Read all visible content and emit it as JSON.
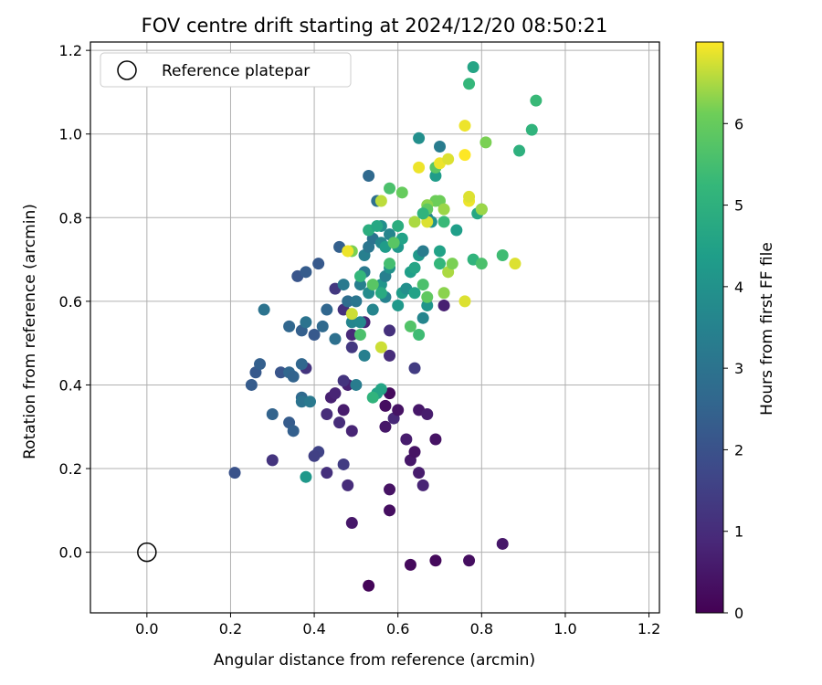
{
  "chart_data": {
    "type": "scatter",
    "title": "FOV centre drift starting at 2024/12/20 08:50:21",
    "xlabel": "Angular distance from reference (arcmin)",
    "ylabel": "Rotation from reference (arcmin)",
    "xlim": [
      -0.135,
      1.225
    ],
    "ylim": [
      -0.145,
      1.22
    ],
    "xticks": [
      "0.0",
      "0.2",
      "0.4",
      "0.6",
      "0.8",
      "1.0",
      "1.2"
    ],
    "yticks": [
      "0.0",
      "0.2",
      "0.4",
      "0.6",
      "0.8",
      "1.0",
      "1.2"
    ],
    "grid": true,
    "legend": {
      "placement": "top-left",
      "entries": [
        "Reference platepar"
      ]
    },
    "reference_point": {
      "x": 0.0,
      "y": 0.0,
      "label": "Reference platepar"
    },
    "colorbar": {
      "label": "Hours from first FF file",
      "min": 0,
      "max": 7,
      "ticks": [
        "0",
        "1",
        "2",
        "3",
        "4",
        "5",
        "6"
      ],
      "colormap": "viridis"
    },
    "series": [
      {
        "points": [
          [
            0.53,
            -0.08,
            0.1
          ],
          [
            0.63,
            -0.03,
            0.2
          ],
          [
            0.69,
            -0.02,
            0.2
          ],
          [
            0.77,
            -0.02,
            0.3
          ],
          [
            0.85,
            0.02,
            0.5
          ],
          [
            0.49,
            0.07,
            0.5
          ],
          [
            0.58,
            0.1,
            0.3
          ],
          [
            0.58,
            0.15,
            0.4
          ],
          [
            0.66,
            0.16,
            0.8
          ],
          [
            0.65,
            0.19,
            0.6
          ],
          [
            0.63,
            0.22,
            0.5
          ],
          [
            0.62,
            0.27,
            0.6
          ],
          [
            0.69,
            0.27,
            0.4
          ],
          [
            0.64,
            0.24,
            0.4
          ],
          [
            0.48,
            0.16,
            1.0
          ],
          [
            0.43,
            0.19,
            1.1
          ],
          [
            0.47,
            0.21,
            1.4
          ],
          [
            0.41,
            0.24,
            1.6
          ],
          [
            0.4,
            0.23,
            1.5
          ],
          [
            0.3,
            0.22,
            1.2
          ],
          [
            0.49,
            0.29,
            0.8
          ],
          [
            0.46,
            0.31,
            1.0
          ],
          [
            0.43,
            0.33,
            1.0
          ],
          [
            0.47,
            0.34,
            0.6
          ],
          [
            0.44,
            0.37,
            0.7
          ],
          [
            0.45,
            0.38,
            0.8
          ],
          [
            0.48,
            0.4,
            0.7
          ],
          [
            0.47,
            0.41,
            1.2
          ],
          [
            0.57,
            0.3,
            0.5
          ],
          [
            0.59,
            0.32,
            0.9
          ],
          [
            0.6,
            0.34,
            0.4
          ],
          [
            0.57,
            0.35,
            0.3
          ],
          [
            0.58,
            0.38,
            0.2
          ],
          [
            0.65,
            0.34,
            0.5
          ],
          [
            0.67,
            0.33,
            0.6
          ],
          [
            0.58,
            0.47,
            1.0
          ],
          [
            0.58,
            0.53,
            1.1
          ],
          [
            0.64,
            0.44,
            1.4
          ],
          [
            0.49,
            0.49,
            1.3
          ],
          [
            0.49,
            0.52,
            0.9
          ],
          [
            0.52,
            0.55,
            0.8
          ],
          [
            0.45,
            0.63,
            1.3
          ],
          [
            0.47,
            0.58,
            1.1
          ],
          [
            0.71,
            0.59,
            0.7
          ],
          [
            0.38,
            0.44,
            1.2
          ],
          [
            0.21,
            0.19,
            2.0
          ],
          [
            0.25,
            0.4,
            2.3
          ],
          [
            0.26,
            0.43,
            2.2
          ],
          [
            0.27,
            0.45,
            2.4
          ],
          [
            0.3,
            0.33,
            2.5
          ],
          [
            0.34,
            0.31,
            2.3
          ],
          [
            0.35,
            0.29,
            2.4
          ],
          [
            0.32,
            0.43,
            2.1
          ],
          [
            0.34,
            0.43,
            2.6
          ],
          [
            0.35,
            0.42,
            2.5
          ],
          [
            0.37,
            0.37,
            2.7
          ],
          [
            0.37,
            0.36,
            3.0
          ],
          [
            0.37,
            0.45,
            2.6
          ],
          [
            0.39,
            0.36,
            3.2
          ],
          [
            0.38,
            0.18,
            4.2
          ],
          [
            0.28,
            0.58,
            3.0
          ],
          [
            0.34,
            0.54,
            2.6
          ],
          [
            0.37,
            0.53,
            2.4
          ],
          [
            0.38,
            0.55,
            3.0
          ],
          [
            0.4,
            0.52,
            2.2
          ],
          [
            0.42,
            0.54,
            2.7
          ],
          [
            0.41,
            0.69,
            2.2
          ],
          [
            0.36,
            0.66,
            2.1
          ],
          [
            0.38,
            0.67,
            2.3
          ],
          [
            0.43,
            0.58,
            2.6
          ],
          [
            0.45,
            0.51,
            2.9
          ],
          [
            0.46,
            0.73,
            2.4
          ],
          [
            0.48,
            0.6,
            2.8
          ],
          [
            0.47,
            0.64,
            3.2
          ],
          [
            0.5,
            0.6,
            3.1
          ],
          [
            0.51,
            0.64,
            3.4
          ],
          [
            0.49,
            0.55,
            3.6
          ],
          [
            0.5,
            0.4,
            3.3
          ],
          [
            0.52,
            0.47,
            3.4
          ],
          [
            0.51,
            0.55,
            3.7
          ],
          [
            0.52,
            0.67,
            3.2
          ],
          [
            0.52,
            0.71,
            3.4
          ],
          [
            0.53,
            0.73,
            3.1
          ],
          [
            0.54,
            0.75,
            3.0
          ],
          [
            0.53,
            0.9,
            2.7
          ],
          [
            0.55,
            0.84,
            2.9
          ],
          [
            0.54,
            0.58,
            3.6
          ],
          [
            0.53,
            0.62,
            3.8
          ],
          [
            0.56,
            0.64,
            4.1
          ],
          [
            0.57,
            0.66,
            3.4
          ],
          [
            0.56,
            0.74,
            3.7
          ],
          [
            0.57,
            0.73,
            4.3
          ],
          [
            0.57,
            0.61,
            3.5
          ],
          [
            0.56,
            0.78,
            3.9
          ],
          [
            0.58,
            0.76,
            3.6
          ],
          [
            0.58,
            0.68,
            4.0
          ],
          [
            0.6,
            0.73,
            4.2
          ],
          [
            0.61,
            0.75,
            4.5
          ],
          [
            0.6,
            0.78,
            4.9
          ],
          [
            0.61,
            0.62,
            4.3
          ],
          [
            0.6,
            0.59,
            4.2
          ],
          [
            0.62,
            0.63,
            3.9
          ],
          [
            0.63,
            0.67,
            4.4
          ],
          [
            0.64,
            0.68,
            4.6
          ],
          [
            0.65,
            0.71,
            4.2
          ],
          [
            0.66,
            0.72,
            3.3
          ],
          [
            0.66,
            0.56,
            3.6
          ],
          [
            0.67,
            0.59,
            4.1
          ],
          [
            0.64,
            0.62,
            4.5
          ],
          [
            0.65,
            0.99,
            3.9
          ],
          [
            0.67,
            0.8,
            3.5
          ],
          [
            0.68,
            0.79,
            4.0
          ],
          [
            0.69,
            0.9,
            4.3
          ],
          [
            0.7,
            0.72,
            4.5
          ],
          [
            0.7,
            0.97,
            3.3
          ],
          [
            0.71,
            0.79,
            5.3
          ],
          [
            0.74,
            0.77,
            4.4
          ],
          [
            0.79,
            0.81,
            4.7
          ],
          [
            0.8,
            0.82,
            4.9
          ],
          [
            0.77,
            1.12,
            5.2
          ],
          [
            0.78,
            1.16,
            4.6
          ],
          [
            0.78,
            0.7,
            5.1
          ],
          [
            0.8,
            0.69,
            5.6
          ],
          [
            0.85,
            0.71,
            5.4
          ],
          [
            0.89,
            0.96,
            5.0
          ],
          [
            0.92,
            1.01,
            5.1
          ],
          [
            0.93,
            1.08,
            5.3
          ],
          [
            0.81,
            0.98,
            6.2
          ],
          [
            0.69,
            0.92,
            5.8
          ],
          [
            0.69,
            0.84,
            6.1
          ],
          [
            0.67,
            0.83,
            6.3
          ],
          [
            0.66,
            0.64,
            5.6
          ],
          [
            0.67,
            0.61,
            5.9
          ],
          [
            0.65,
            0.52,
            5.4
          ],
          [
            0.63,
            0.54,
            5.7
          ],
          [
            0.58,
            0.87,
            5.6
          ],
          [
            0.61,
            0.86,
            6.0
          ],
          [
            0.56,
            0.84,
            6.6
          ],
          [
            0.54,
            0.64,
            5.8
          ],
          [
            0.58,
            0.69,
            5.5
          ],
          [
            0.53,
            0.77,
            4.9
          ],
          [
            0.55,
            0.78,
            4.7
          ],
          [
            0.56,
            0.62,
            4.8
          ],
          [
            0.55,
            0.38,
            4.5
          ],
          [
            0.56,
            0.39,
            4.6
          ],
          [
            0.54,
            0.37,
            5.1
          ],
          [
            0.51,
            0.52,
            5.6
          ],
          [
            0.51,
            0.66,
            5.2
          ],
          [
            0.49,
            0.72,
            6.2
          ],
          [
            0.49,
            0.57,
            6.7
          ],
          [
            0.48,
            0.72,
            6.9
          ],
          [
            0.56,
            0.49,
            6.7
          ],
          [
            0.59,
            0.74,
            5.8
          ],
          [
            0.7,
            0.69,
            5.2
          ],
          [
            0.71,
            0.62,
            6.3
          ],
          [
            0.72,
            0.67,
            6.5
          ],
          [
            0.73,
            0.69,
            6.2
          ],
          [
            0.65,
            0.92,
            6.9
          ],
          [
            0.7,
            0.93,
            6.9
          ],
          [
            0.64,
            0.79,
            6.5
          ],
          [
            0.67,
            0.79,
            6.8
          ],
          [
            0.76,
            1.02,
            6.9
          ],
          [
            0.76,
            0.95,
            7.0
          ],
          [
            0.77,
            0.84,
            6.9
          ],
          [
            0.77,
            0.85,
            6.8
          ],
          [
            0.8,
            0.82,
            6.4
          ],
          [
            0.76,
            0.6,
            6.8
          ],
          [
            0.88,
            0.69,
            6.8
          ],
          [
            0.7,
            0.84,
            6.1
          ],
          [
            0.71,
            0.82,
            6.4
          ],
          [
            0.72,
            0.94,
            6.8
          ],
          [
            0.67,
            0.82,
            5.9
          ],
          [
            0.66,
            0.81,
            5.1
          ]
        ]
      }
    ]
  }
}
